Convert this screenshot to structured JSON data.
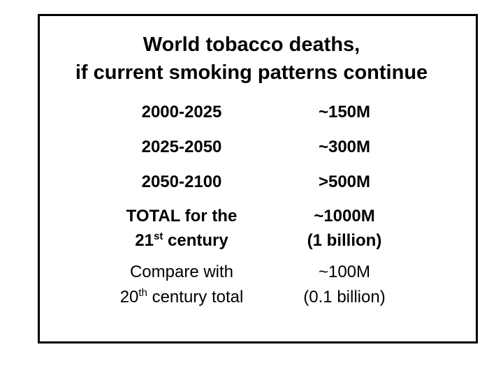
{
  "title": {
    "line1": "World tobacco deaths,",
    "line2": "if current smoking patterns continue"
  },
  "rows": [
    {
      "period": "2000-2025",
      "deaths": "~150M"
    },
    {
      "period": "2025-2050",
      "deaths": "~300M"
    },
    {
      "period": "2050-2100",
      "deaths": ">500M"
    }
  ],
  "total": {
    "label_line1": "TOTAL for the",
    "label_line2_num": "21",
    "label_line2_sup": "st",
    "label_line2_rest": " century",
    "value_line1": "~1000M",
    "value_line2": "(1 billion)"
  },
  "compare": {
    "label_line1": "Compare with",
    "label_line2_num": "20",
    "label_line2_sup": "th",
    "label_line2_rest": " century total",
    "value_line1": "~100M",
    "value_line2": "(0.1 billion)"
  }
}
